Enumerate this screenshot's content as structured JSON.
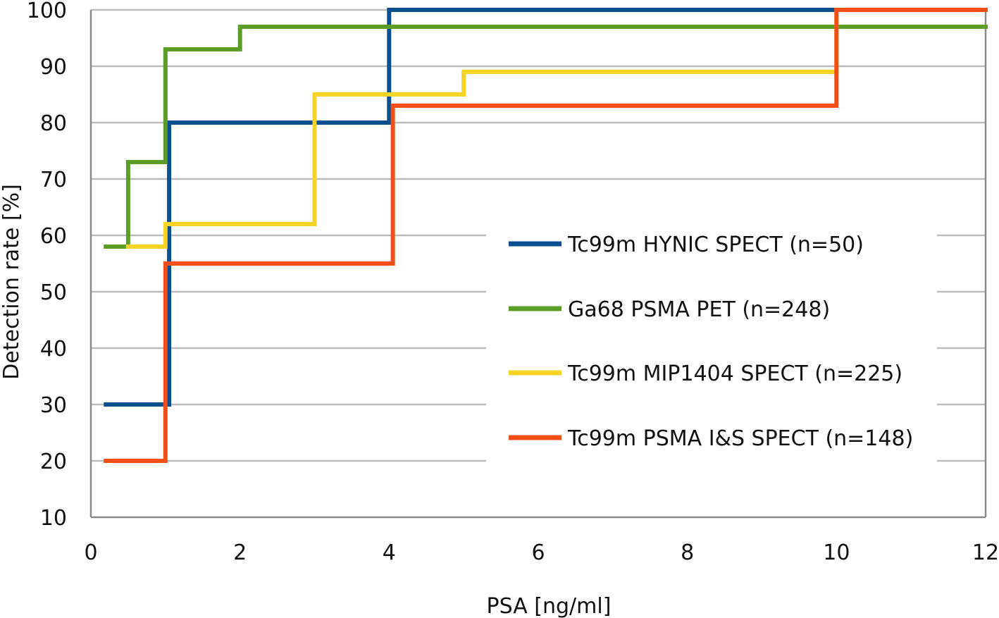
{
  "chart_data": {
    "type": "line",
    "step": true,
    "xlabel": "PSA [ng/ml]",
    "ylabel": "Detection rate [%]",
    "xlim": [
      0,
      12
    ],
    "ylim": [
      10,
      100
    ],
    "xticks": [
      0,
      2,
      4,
      6,
      8,
      10,
      12
    ],
    "yticks": [
      10,
      20,
      30,
      40,
      50,
      60,
      70,
      80,
      90,
      100
    ],
    "grid": "horizontal",
    "legend_position": "center-right",
    "series": [
      {
        "name": "Tc99m HYNIC SPECT (n=50)",
        "color": "#0c4f8f",
        "points": [
          [
            0.2,
            30
          ],
          [
            1.05,
            30
          ],
          [
            1.05,
            80
          ],
          [
            4.0,
            80
          ],
          [
            4.0,
            100
          ],
          [
            12,
            100
          ]
        ]
      },
      {
        "name": "Ga68 PSMA PET (n=248)",
        "color": "#5c9d2a",
        "points": [
          [
            0.2,
            58
          ],
          [
            0.5,
            58
          ],
          [
            0.5,
            73
          ],
          [
            1.0,
            73
          ],
          [
            1.0,
            93
          ],
          [
            2.0,
            93
          ],
          [
            2.0,
            97
          ],
          [
            12,
            97
          ]
        ]
      },
      {
        "name": "Tc99m MIP1404 SPECT (n=225)",
        "color": "#f5d327",
        "points": [
          [
            0.5,
            58
          ],
          [
            1.0,
            58
          ],
          [
            1.0,
            62
          ],
          [
            3.0,
            62
          ],
          [
            3.0,
            85
          ],
          [
            5.0,
            85
          ],
          [
            5.0,
            89
          ],
          [
            10.0,
            89
          ],
          [
            10.0,
            100
          ],
          [
            12,
            100
          ]
        ]
      },
      {
        "name": "Tc99m PSMA I&S SPECT (n=148)",
        "color": "#f24e17",
        "points": [
          [
            0.2,
            20
          ],
          [
            1.0,
            20
          ],
          [
            1.0,
            55
          ],
          [
            4.05,
            55
          ],
          [
            4.05,
            83
          ],
          [
            10.0,
            83
          ],
          [
            10.0,
            100
          ],
          [
            12,
            100
          ]
        ]
      }
    ]
  }
}
